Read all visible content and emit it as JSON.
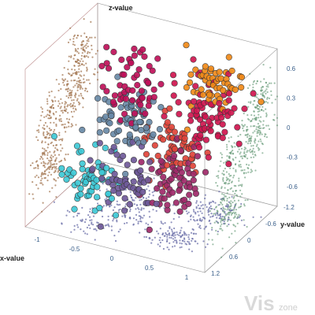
{
  "chart_data": {
    "type": "scatter3d",
    "axes": {
      "x": {
        "label": "x-value",
        "range": [
          -1.2,
          1.2
        ],
        "ticks": [
          "-1",
          "-0.5",
          "0",
          "0.5",
          "1"
        ]
      },
      "y": {
        "label": "y-value",
        "range": [
          -1.2,
          1.2
        ],
        "ticks": [
          "-1.2",
          "-0.6",
          "0",
          "0.6",
          "1.2"
        ]
      },
      "z": {
        "label": "z-value",
        "range": [
          -0.8,
          0.8
        ],
        "ticks": [
          "0.6",
          "0.3",
          "0",
          "-0.3",
          "-0.6"
        ]
      }
    },
    "projections": {
      "xy_floor_color": "#6b6fa8",
      "xz_wall_color": "#a0704a",
      "yz_wall_color": "#5e9470"
    },
    "clusters": [
      {
        "center": [
          -0.55,
          -0.7,
          0.25
        ],
        "spread": [
          0.2,
          0.2,
          0.18
        ],
        "count": 60,
        "color": "#c0115a"
      },
      {
        "center": [
          -0.4,
          -0.2,
          0.05
        ],
        "spread": [
          0.2,
          0.2,
          0.15
        ],
        "count": 70,
        "color": "#6a8aa8"
      },
      {
        "center": [
          -0.5,
          0.6,
          -0.35
        ],
        "spread": [
          0.2,
          0.2,
          0.15
        ],
        "count": 60,
        "color": "#3ec9d6"
      },
      {
        "center": [
          -0.3,
          0.2,
          -0.45
        ],
        "spread": [
          0.2,
          0.2,
          0.15
        ],
        "count": 55,
        "color": "#6f5a9a"
      },
      {
        "center": [
          0.5,
          -0.7,
          0.45
        ],
        "spread": [
          0.2,
          0.2,
          0.15
        ],
        "count": 55,
        "color": "#f08a1a"
      },
      {
        "center": [
          0.55,
          -0.35,
          0.25
        ],
        "spread": [
          0.22,
          0.22,
          0.18
        ],
        "count": 80,
        "color": "#d01650"
      },
      {
        "center": [
          0.5,
          0.4,
          0.1
        ],
        "spread": [
          0.2,
          0.2,
          0.15
        ],
        "count": 60,
        "color": "#e0453a"
      },
      {
        "center": [
          0.45,
          0.45,
          -0.25
        ],
        "spread": [
          0.2,
          0.2,
          0.18
        ],
        "count": 65,
        "color": "#a02a6a"
      }
    ],
    "grid": true,
    "legend": "none"
  },
  "watermark": {
    "big": "Vis",
    "small": "zone"
  }
}
